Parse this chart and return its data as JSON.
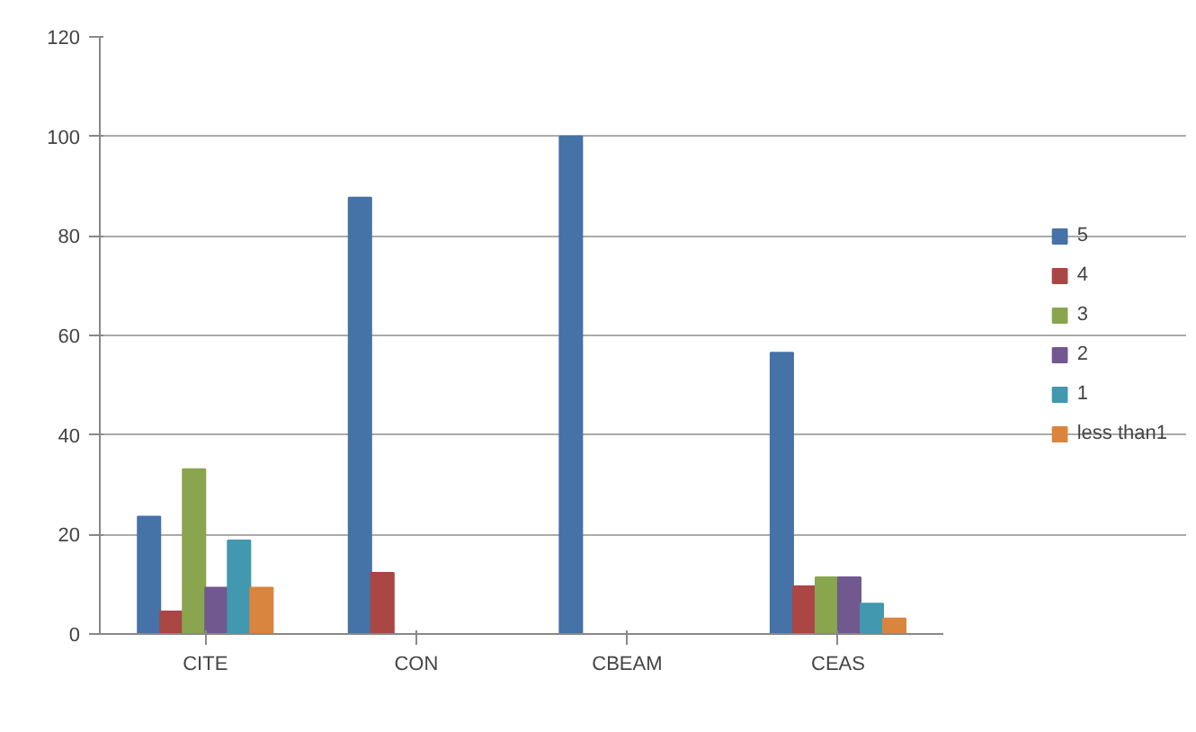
{
  "chart_data": {
    "type": "bar",
    "categories": [
      "CITE",
      "CON",
      "CBEAM",
      "CEAS"
    ],
    "series": [
      {
        "name": "5",
        "color": "#4572a7",
        "values": [
          23.6,
          87.7,
          100,
          56.5
        ]
      },
      {
        "name": "4",
        "color": "#aa4643",
        "values": [
          4.5,
          12.3,
          0,
          9.6
        ]
      },
      {
        "name": "3",
        "color": "#89a54e",
        "values": [
          33.1,
          0,
          0,
          11.4
        ]
      },
      {
        "name": "2",
        "color": "#71588f",
        "values": [
          9.3,
          0,
          0,
          11.4
        ]
      },
      {
        "name": "1",
        "color": "#4198af",
        "values": [
          18.8,
          0,
          0,
          6.1
        ]
      },
      {
        "name": "less than1",
        "color": "#db843d",
        "values": [
          9.3,
          0,
          0,
          3.1
        ]
      }
    ],
    "ylim": [
      0,
      120
    ],
    "yticks": [
      0,
      20,
      40,
      60,
      80,
      100,
      120
    ],
    "grid": "y",
    "legend": "right"
  }
}
